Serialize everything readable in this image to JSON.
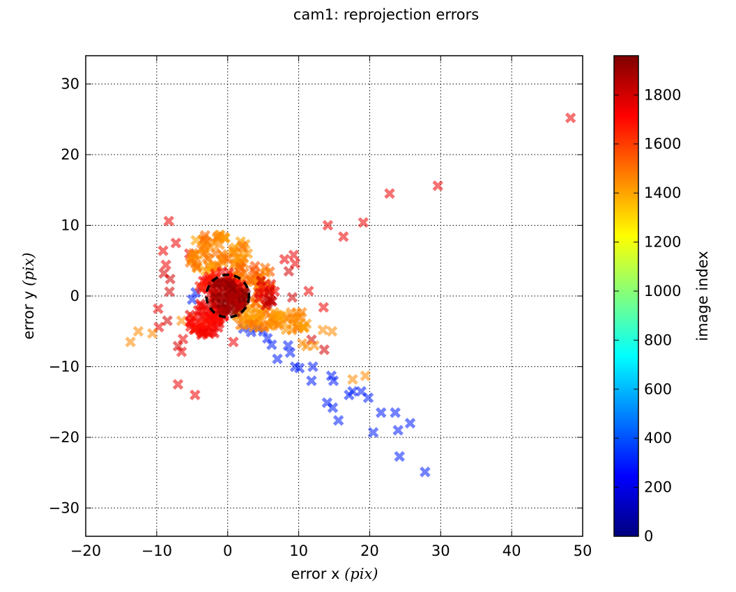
{
  "chart_data": {
    "type": "scatter",
    "title": "cam1: reprojection errors",
    "xlabel_prefix": "error x ",
    "ylabel_prefix": "error y ",
    "unit": "(pix)",
    "xlim": [
      -20,
      50
    ],
    "ylim": [
      -34,
      34
    ],
    "xticks": [
      -20,
      -10,
      0,
      10,
      20,
      30,
      40,
      50
    ],
    "yticks": [
      -30,
      -20,
      -10,
      0,
      10,
      20,
      30
    ],
    "xtick_labels": [
      "−20",
      "−10",
      "0",
      "10",
      "20",
      "30",
      "40",
      "50"
    ],
    "ytick_labels": [
      "−30",
      "−20",
      "−10",
      "0",
      "10",
      "20",
      "30"
    ],
    "grid": true,
    "marker": "x",
    "colorbar": {
      "label": "image index",
      "colormap": "jet",
      "range": [
        0,
        1960
      ],
      "ticks": [
        0,
        200,
        400,
        600,
        800,
        1000,
        1200,
        1400,
        1600,
        1800
      ],
      "tick_labels": [
        "0",
        "200",
        "400",
        "600",
        "800",
        "1000",
        "1200",
        "1400",
        "1600",
        "1800"
      ]
    },
    "circle": {
      "style": "dashed",
      "color": "#000000",
      "center": [
        0,
        0
      ],
      "radius": 3
    },
    "points": [
      [
        48.3,
        25.2,
        1750
      ],
      [
        29.6,
        15.6,
        1750
      ],
      [
        22.8,
        14.5,
        1750
      ],
      [
        14.1,
        10.0,
        1750
      ],
      [
        19.1,
        10.4,
        1750
      ],
      [
        16.3,
        8.4,
        1750
      ],
      [
        -8.3,
        10.6,
        1750
      ],
      [
        -7.3,
        7.5,
        1750
      ],
      [
        -9.1,
        6.4,
        1750
      ],
      [
        -5.4,
        6.0,
        1750
      ],
      [
        -8.7,
        4.4,
        1750
      ],
      [
        -8.1,
        2.4,
        1800
      ],
      [
        -9.0,
        3.2,
        1800
      ],
      [
        -8.2,
        0.6,
        1800
      ],
      [
        -9.8,
        -1.8,
        1750
      ],
      [
        -8.5,
        -3.5,
        1800
      ],
      [
        -9.7,
        -4.4,
        1750
      ],
      [
        -6.3,
        -6.1,
        1750
      ],
      [
        -6.5,
        -7.9,
        1750
      ],
      [
        -7.0,
        -7.1,
        1800
      ],
      [
        -7.0,
        -12.5,
        1750
      ],
      [
        -4.6,
        -14.0,
        1750
      ],
      [
        0.8,
        -6.5,
        1750
      ],
      [
        9.3,
        5.8,
        1750
      ],
      [
        9.5,
        4.6,
        1750
      ],
      [
        8.0,
        5.2,
        1750
      ],
      [
        8.6,
        3.5,
        1800
      ],
      [
        11.4,
        0.7,
        1750
      ],
      [
        13.5,
        -1.6,
        1750
      ],
      [
        13.6,
        -7.6,
        1800
      ],
      [
        11.8,
        -6.2,
        1800
      ],
      [
        9.1,
        -0.2,
        1800
      ],
      [
        -12.6,
        -5.0,
        1450
      ],
      [
        -13.7,
        -6.5,
        1450
      ],
      [
        -10.6,
        -5.3,
        1450
      ],
      [
        -6.5,
        -3.5,
        1450
      ],
      [
        17.6,
        -11.8,
        1450
      ],
      [
        19.4,
        -11.3,
        1450
      ],
      [
        12.2,
        -7.0,
        1450
      ],
      [
        11.1,
        -7.1,
        1450
      ],
      [
        14.7,
        -5.0,
        1450
      ],
      [
        13.4,
        -4.8,
        1450
      ],
      [
        10.5,
        -6.7,
        1450
      ],
      [
        20.5,
        -19.3,
        300
      ],
      [
        24.2,
        -22.7,
        300
      ],
      [
        27.8,
        -24.9,
        300
      ],
      [
        25.7,
        -18.0,
        300
      ],
      [
        23.6,
        -16.5,
        300
      ],
      [
        24.0,
        -19.0,
        300
      ],
      [
        21.6,
        -16.5,
        300
      ],
      [
        19.8,
        -14.4,
        300
      ],
      [
        18.8,
        -13.5,
        300
      ],
      [
        17.6,
        -13.5,
        300
      ],
      [
        17.1,
        -14.0,
        300
      ],
      [
        15.6,
        -17.6,
        300
      ],
      [
        14.8,
        -15.8,
        300
      ],
      [
        14.0,
        -15.1,
        300
      ],
      [
        14.6,
        -11.3,
        300
      ],
      [
        14.9,
        -12.0,
        300
      ],
      [
        11.8,
        -12.0,
        300
      ],
      [
        12.0,
        -10.0,
        300
      ],
      [
        9.5,
        -10.0,
        300
      ],
      [
        10.1,
        -10.2,
        300
      ],
      [
        8.8,
        -8.0,
        300
      ],
      [
        8.5,
        -7.0,
        300
      ],
      [
        7.0,
        -8.9,
        300
      ],
      [
        6.2,
        -6.9,
        300
      ],
      [
        5.6,
        -6.0,
        300
      ],
      [
        5.0,
        -5.0,
        300
      ],
      [
        4.2,
        -4.6,
        300
      ],
      [
        3.3,
        -5.1,
        300
      ],
      [
        2.2,
        -4.6,
        300
      ],
      [
        -4.5,
        0.5,
        300
      ],
      [
        -5.0,
        -0.5,
        300
      ]
    ]
  }
}
